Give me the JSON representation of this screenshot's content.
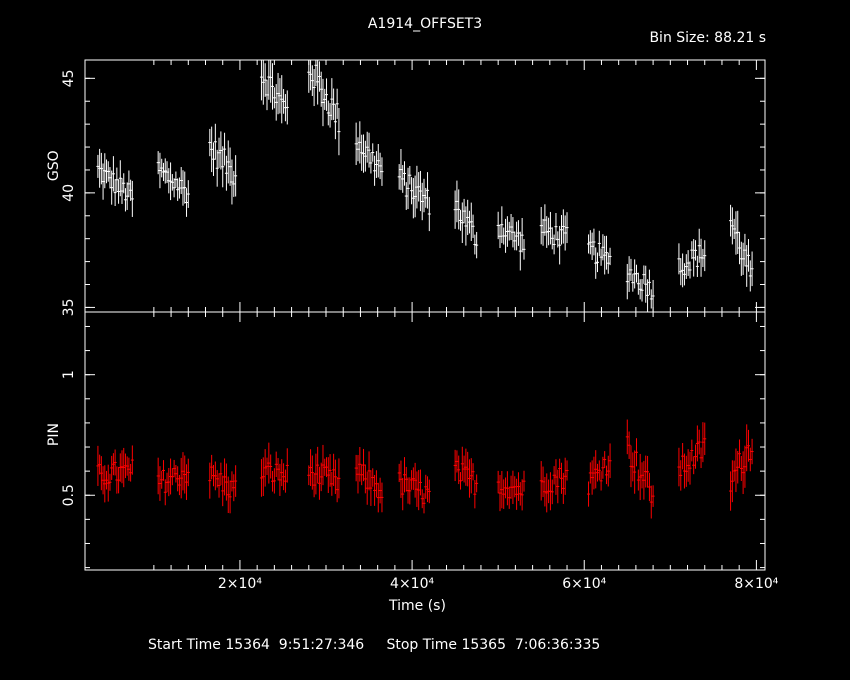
{
  "chart_data": {
    "type": "scatter",
    "title": "A1914_OFFSET3",
    "bin_size": "Bin Size: 88.21 s",
    "xlabel": "Time (s)",
    "xlim": [
      2000,
      81000
    ],
    "x_ticks": [
      {
        "value": 20000,
        "label": "2×10⁴"
      },
      {
        "value": 40000,
        "label": "4×10⁴"
      },
      {
        "value": 60000,
        "label": "6×10⁴"
      },
      {
        "value": 80000,
        "label": "8×10⁴"
      }
    ],
    "panels": [
      {
        "name": "GSO",
        "ylabel": "GSO",
        "color": "#ffffff",
        "ylim": [
          34.8,
          45.8
        ],
        "y_ticks": [
          {
            "value": 35,
            "label": "35"
          },
          {
            "value": 40,
            "label": "40"
          },
          {
            "value": 45,
            "label": "45"
          }
        ],
        "segments": [
          {
            "t0": 3500,
            "t1": 7500,
            "y0": 41.0,
            "y1": 39.8,
            "noise": 1.0
          },
          {
            "t0": 10500,
            "t1": 14000,
            "y0": 41.0,
            "y1": 40.0,
            "noise": 1.0
          },
          {
            "t0": 16500,
            "t1": 19500,
            "y0": 42.0,
            "y1": 40.8,
            "noise": 1.2
          },
          {
            "t0": 22500,
            "t1": 25500,
            "y0": 45.3,
            "y1": 43.5,
            "noise": 1.3
          },
          {
            "t0": 28000,
            "t1": 31500,
            "y0": 45.5,
            "y1": 43.2,
            "noise": 1.3
          },
          {
            "t0": 33500,
            "t1": 36500,
            "y0": 42.3,
            "y1": 41.0,
            "noise": 1.1
          },
          {
            "t0": 38500,
            "t1": 42000,
            "y0": 40.6,
            "y1": 39.6,
            "noise": 1.1
          },
          {
            "t0": 45000,
            "t1": 47500,
            "y0": 39.5,
            "y1": 38.0,
            "noise": 1.1
          },
          {
            "t0": 50000,
            "t1": 53000,
            "y0": 38.6,
            "y1": 37.8,
            "noise": 1.0
          },
          {
            "t0": 55000,
            "t1": 58000,
            "y0": 38.4,
            "y1": 38.0,
            "noise": 1.0
          },
          {
            "t0": 60500,
            "t1": 63000,
            "y0": 37.6,
            "y1": 37.0,
            "noise": 1.0
          },
          {
            "t0": 65000,
            "t1": 68000,
            "y0": 36.6,
            "y1": 35.8,
            "noise": 1.0
          },
          {
            "t0": 71000,
            "t1": 74000,
            "y0": 36.8,
            "y1": 37.4,
            "noise": 1.0
          },
          {
            "t0": 77000,
            "t1": 79500,
            "y0": 38.8,
            "y1": 36.3,
            "noise": 1.2
          }
        ]
      },
      {
        "name": "PIN",
        "ylabel": "PIN",
        "color": "#ff0000",
        "ylim": [
          0.19,
          1.26
        ],
        "y_ticks": [
          {
            "value": 0.5,
            "label": "0.5"
          },
          {
            "value": 1,
            "label": "1"
          }
        ],
        "segments": [
          {
            "t0": 3500,
            "t1": 7500,
            "y0": 0.58,
            "y1": 0.6,
            "noise": 0.1
          },
          {
            "t0": 10500,
            "t1": 14000,
            "y0": 0.55,
            "y1": 0.6,
            "noise": 0.1
          },
          {
            "t0": 16500,
            "t1": 19500,
            "y0": 0.58,
            "y1": 0.52,
            "noise": 0.1
          },
          {
            "t0": 22500,
            "t1": 25500,
            "y0": 0.6,
            "y1": 0.58,
            "noise": 0.1
          },
          {
            "t0": 28000,
            "t1": 31500,
            "y0": 0.6,
            "y1": 0.55,
            "noise": 0.1
          },
          {
            "t0": 33500,
            "t1": 36500,
            "y0": 0.6,
            "y1": 0.52,
            "noise": 0.1
          },
          {
            "t0": 38500,
            "t1": 42000,
            "y0": 0.55,
            "y1": 0.5,
            "noise": 0.1
          },
          {
            "t0": 45000,
            "t1": 47500,
            "y0": 0.6,
            "y1": 0.55,
            "noise": 0.1
          },
          {
            "t0": 50000,
            "t1": 53000,
            "y0": 0.55,
            "y1": 0.52,
            "noise": 0.1
          },
          {
            "t0": 55000,
            "t1": 58000,
            "y0": 0.55,
            "y1": 0.58,
            "noise": 0.1
          },
          {
            "t0": 60500,
            "t1": 63000,
            "y0": 0.55,
            "y1": 0.65,
            "noise": 0.1
          },
          {
            "t0": 65000,
            "t1": 68000,
            "y0": 0.7,
            "y1": 0.5,
            "noise": 0.12
          },
          {
            "t0": 71000,
            "t1": 74000,
            "y0": 0.6,
            "y1": 0.7,
            "noise": 0.1
          },
          {
            "t0": 77000,
            "t1": 79500,
            "y0": 0.55,
            "y1": 0.72,
            "noise": 0.12
          }
        ]
      }
    ],
    "footer": "Start Time 15364  9:51:27:346     Stop Time 15365  7:06:36:335"
  }
}
